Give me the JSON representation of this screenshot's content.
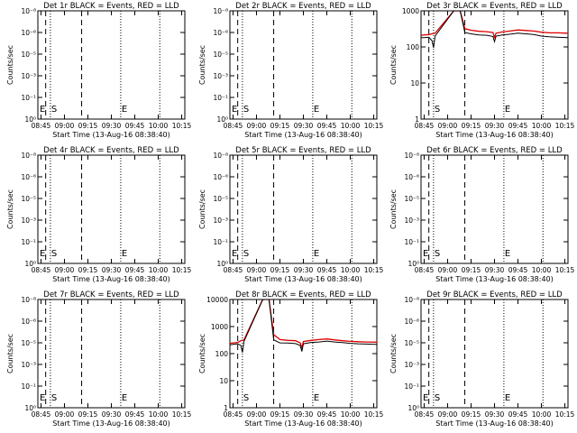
{
  "figure": {
    "xlabel": "Start Time (13-Aug-16 08:38:40)",
    "ylabel": "Counts/sec",
    "legend_text": "BLACK = Events, RED = LLD",
    "colors": {
      "events": "#000000",
      "lld": "#dd0000",
      "axes": "#000000",
      "background": "#ffffff"
    }
  },
  "chart_data": [
    {
      "type": "line",
      "title": "Det 1r BLACK = Events, RED = LLD",
      "yscale": "log",
      "ylim": [
        1,
        10
      ],
      "y_tick_labels": [
        "10⁰",
        "10⁻¹",
        "10⁻³",
        "10⁻⁵",
        "10⁻⁶",
        "10⁻⁸"
      ],
      "x_tick_labels": [
        "08:45",
        "09:00",
        "09:15",
        "09:30",
        "09:45",
        "10:00",
        "10:15"
      ],
      "markers": {
        "start_label": "S",
        "end_label": "E"
      },
      "has_data": false,
      "series": []
    },
    {
      "type": "line",
      "title": "Det 2r BLACK = Events, RED = LLD",
      "yscale": "log",
      "ylim": [
        1,
        10
      ],
      "y_tick_labels": [
        "10⁰",
        "10⁻¹",
        "10⁻³",
        "10⁻⁵",
        "10⁻⁶",
        "10⁻⁸"
      ],
      "x_tick_labels": [
        "08:45",
        "09:00",
        "09:15",
        "09:30",
        "09:45",
        "10:00",
        "10:15"
      ],
      "markers": {
        "start_label": "S",
        "end_label": "E"
      },
      "has_data": false,
      "series": []
    },
    {
      "type": "line",
      "title": "Det 3r BLACK = Events, RED = LLD",
      "yscale": "log",
      "ylim": [
        1,
        1000
      ],
      "y_tick_labels": [
        "1",
        "10",
        "100",
        "1000"
      ],
      "x_tick_labels": [
        "08:45",
        "09:00",
        "09:15",
        "09:30",
        "09:45",
        "10:00",
        "10:15"
      ],
      "markers": {
        "start_label": "S",
        "end_label": "E"
      },
      "has_data": true,
      "series": [
        {
          "name": "LLD",
          "x": [
            "08:43",
            "08:45",
            "08:48",
            "08:50",
            "08:52",
            "09:04",
            "09:08",
            "09:11",
            "09:15",
            "09:20",
            "09:25",
            "09:29",
            "09:30",
            "09:31",
            "09:35",
            "09:40",
            "09:45",
            "09:50",
            "09:55",
            "10:00",
            "10:05",
            "10:10",
            "10:17"
          ],
          "y": [
            210,
            215,
            220,
            230,
            240,
            1000,
            1000,
            320,
            290,
            270,
            265,
            250,
            185,
            240,
            260,
            275,
            295,
            285,
            275,
            255,
            245,
            245,
            240
          ]
        },
        {
          "name": "Events",
          "x": [
            "08:43",
            "08:45",
            "08:48",
            "08:50",
            "08:51",
            "08:52",
            "09:04",
            "09:08",
            "09:11",
            "09:15",
            "09:20",
            "09:25",
            "09:29",
            "09:30",
            "09:31",
            "09:35",
            "09:40",
            "09:45",
            "09:50",
            "09:55",
            "10:00",
            "10:05",
            "10:10",
            "10:17"
          ],
          "y": [
            180,
            180,
            185,
            150,
            95,
            200,
            1000,
            1000,
            250,
            230,
            215,
            210,
            195,
            140,
            200,
            215,
            225,
            240,
            230,
            220,
            200,
            190,
            185,
            180
          ]
        }
      ]
    },
    {
      "type": "line",
      "title": "Det 4r BLACK = Events, RED = LLD",
      "yscale": "log",
      "ylim": [
        1,
        10
      ],
      "y_tick_labels": [
        "10⁰",
        "10⁻¹",
        "10⁻³",
        "10⁻⁵",
        "10⁻⁶",
        "10⁻⁸"
      ],
      "x_tick_labels": [
        "08:45",
        "09:00",
        "09:15",
        "09:30",
        "09:45",
        "10:00",
        "10:15"
      ],
      "markers": {
        "start_label": "S",
        "end_label": "E"
      },
      "has_data": false,
      "series": []
    },
    {
      "type": "line",
      "title": "Det 5r BLACK = Events, RED = LLD",
      "yscale": "log",
      "ylim": [
        1,
        10
      ],
      "y_tick_labels": [
        "10⁰",
        "10⁻¹",
        "10⁻³",
        "10⁻⁵",
        "10⁻⁶",
        "10⁻⁸"
      ],
      "x_tick_labels": [
        "08:45",
        "09:00",
        "09:15",
        "09:30",
        "09:45",
        "10:00",
        "10:15"
      ],
      "markers": {
        "start_label": "S",
        "end_label": "E"
      },
      "has_data": false,
      "series": []
    },
    {
      "type": "line",
      "title": "Det 6r BLACK = Events, RED = LLD",
      "yscale": "log",
      "ylim": [
        1,
        10
      ],
      "y_tick_labels": [
        "10⁰",
        "10⁻¹",
        "10⁻³",
        "10⁻⁵",
        "10⁻⁶",
        "10⁻⁸"
      ],
      "x_tick_labels": [
        "08:45",
        "09:00",
        "09:15",
        "09:30",
        "09:45",
        "10:00",
        "10:15"
      ],
      "markers": {
        "start_label": "S",
        "end_label": "E"
      },
      "has_data": false,
      "series": []
    },
    {
      "type": "line",
      "title": "Det 7r BLACK = Events, RED = LLD",
      "yscale": "log",
      "ylim": [
        1,
        10
      ],
      "y_tick_labels": [
        "10⁰",
        "10⁻¹",
        "10⁻³",
        "10⁻⁵",
        "10⁻⁶",
        "10⁻⁸"
      ],
      "x_tick_labels": [
        "08:45",
        "09:00",
        "09:15",
        "09:30",
        "09:45",
        "10:00",
        "10:15"
      ],
      "markers": {
        "start_label": "S",
        "end_label": "E"
      },
      "has_data": false,
      "series": []
    },
    {
      "type": "line",
      "title": "Det 8r BLACK = Events, RED = LLD",
      "yscale": "log",
      "ylim": [
        1,
        10000
      ],
      "y_tick_labels": [
        "1",
        "10",
        "100",
        "1000",
        "10000"
      ],
      "x_tick_labels": [
        "08:45",
        "09:00",
        "09:15",
        "09:30",
        "09:45",
        "10:00",
        "10:15"
      ],
      "markers": {
        "start_label": "S",
        "end_label": "E"
      },
      "has_data": true,
      "series": [
        {
          "name": "LLD",
          "x": [
            "08:43",
            "08:45",
            "08:48",
            "08:50",
            "08:52",
            "09:04",
            "09:08",
            "09:11",
            "09:15",
            "09:20",
            "09:25",
            "09:28",
            "09:29",
            "09:30",
            "09:35",
            "09:40",
            "09:45",
            "09:50",
            "09:55",
            "10:00",
            "10:05",
            "10:10",
            "10:17"
          ],
          "y": [
            240,
            250,
            260,
            300,
            320,
            10000,
            10000,
            500,
            330,
            310,
            300,
            250,
            160,
            280,
            310,
            330,
            350,
            320,
            300,
            285,
            275,
            270,
            265
          ]
        },
        {
          "name": "Events",
          "x": [
            "08:43",
            "08:45",
            "08:48",
            "08:50",
            "08:51",
            "08:52",
            "09:04",
            "09:08",
            "09:11",
            "09:15",
            "09:20",
            "09:25",
            "09:28",
            "09:29",
            "09:30",
            "09:35",
            "09:40",
            "09:45",
            "09:50",
            "09:55",
            "10:00",
            "10:05",
            "10:10",
            "10:17"
          ],
          "y": [
            210,
            220,
            230,
            200,
            110,
            280,
            10000,
            10000,
            320,
            250,
            245,
            235,
            200,
            120,
            230,
            260,
            270,
            290,
            270,
            255,
            240,
            230,
            225,
            220
          ]
        }
      ]
    },
    {
      "type": "line",
      "title": "Det 9r BLACK = Events, RED = LLD",
      "yscale": "log",
      "ylim": [
        1,
        10
      ],
      "y_tick_labels": [
        "10⁰",
        "10⁻¹",
        "10⁻³",
        "10⁻⁵",
        "10⁻⁶",
        "10⁻⁸"
      ],
      "x_tick_labels": [
        "08:45",
        "09:00",
        "09:15",
        "09:30",
        "09:45",
        "10:00",
        "10:15"
      ],
      "markers": {
        "start_label": "S",
        "end_label": "E"
      },
      "has_data": false,
      "series": []
    }
  ]
}
